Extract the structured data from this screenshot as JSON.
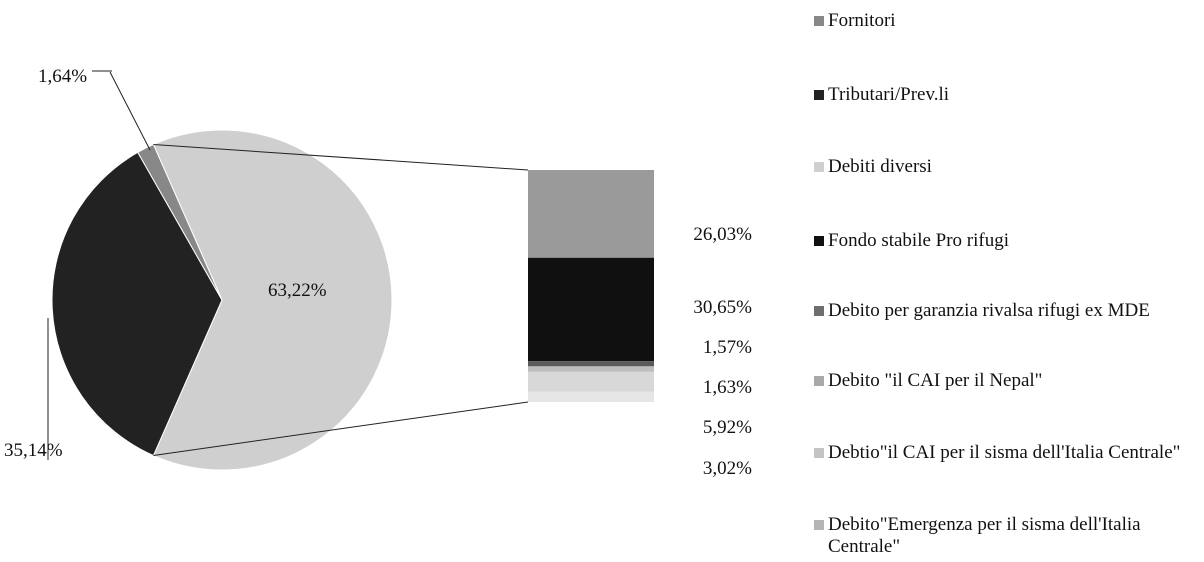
{
  "chart_data": {
    "type": "bar-of-pie",
    "pie": {
      "slices": [
        {
          "category": "Debiti diversi",
          "value": 63.22,
          "label": "63,22%",
          "color": "#cfcfcf"
        },
        {
          "category": "Tributari/Prev.li",
          "value": 35.14,
          "label": "35,14%",
          "color": "#222222"
        },
        {
          "category": "Fornitori",
          "value": 1.64,
          "label": "1,64%",
          "color": "#888888"
        }
      ]
    },
    "bar": {
      "segments": [
        {
          "category": "Fondo stabile Pro rifugi",
          "value": 26.03,
          "label": "26,03%",
          "color": "#9a9a9a"
        },
        {
          "category": "Debito per garanzia rivalsa rifugi ex MDE",
          "value": 30.65,
          "label": "30,65%",
          "color": "#101010"
        },
        {
          "category": "Debito \"il CAI per il Nepal\"",
          "value": 1.57,
          "label": "1,57%",
          "color": "#5a5a5a"
        },
        {
          "category": "Debtio\"il CAI per il sisma dell'Italia Centrale\"",
          "value": 1.63,
          "label": "1,63%",
          "color": "#bdbdbd"
        },
        {
          "category": "Debito\"Emergenza per il sisma dell'Italia Centrale\"",
          "value": 5.92,
          "label": "5,92%",
          "color": "#d8d8d8"
        },
        {
          "category": "",
          "value": 3.02,
          "label": "3,02%",
          "color": "#e6e6e6"
        }
      ]
    },
    "legend": {
      "position": "right",
      "items": [
        {
          "text": "Fornitori",
          "color": "#888888"
        },
        {
          "text": "Tributari/Prev.li",
          "color": "#222222"
        },
        {
          "text": "Debiti diversi",
          "color": "#cfcfcf"
        },
        {
          "text": "Fondo stabile Pro rifugi",
          "color": "#101010"
        },
        {
          "text": "Debito per garanzia rivalsa rifugi ex MDE",
          "color": "#6e6e6e"
        },
        {
          "text": "Debito \"il CAI per il Nepal\"",
          "color": "#a8a8a8"
        },
        {
          "text": "Debtio\"il CAI per il sisma dell'Italia Centrale\"",
          "color": "#c4c4c4"
        },
        {
          "text": "Debito\"Emergenza per il sisma dell'Italia Centrale\"",
          "color": "#b5b5b5"
        }
      ]
    }
  }
}
